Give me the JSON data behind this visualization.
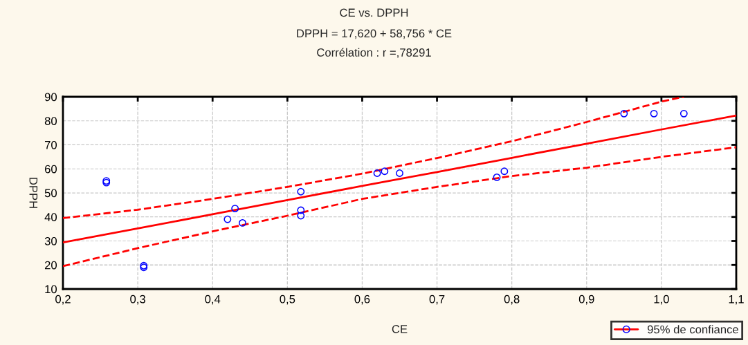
{
  "chart_data": {
    "type": "scatter",
    "title": "CE vs. DPPH",
    "subtitle": "DPPH = 17,620 + 58,756 * CE\nCorrélation : r =,78291",
    "xlabel": "CE",
    "ylabel": "DPPH",
    "series": [
      {
        "color": "#0000ff",
        "marker": "circle",
        "x": [
          0.258,
          0.258,
          0.308,
          0.308,
          0.42,
          0.43,
          0.44,
          0.518,
          0.518,
          0.518,
          0.62,
          0.63,
          0.65,
          0.78,
          0.79,
          0.95,
          0.99,
          1.03
        ],
        "values": [
          55,
          54.3,
          19.7,
          19,
          39,
          43.5,
          37.5,
          50.5,
          42.8,
          40.5,
          58.2,
          59,
          58.2,
          56.5,
          59,
          83,
          83,
          83
        ]
      },
      {
        "type": "line",
        "name": "95% de confiance",
        "color": "#ff0000",
        "line_style": "solid",
        "x": [
          0.2,
          0.3,
          0.4,
          0.5,
          0.6,
          0.7,
          0.8,
          0.9,
          1.0,
          1.1
        ],
        "values": [
          29.4,
          35.2,
          41.1,
          47,
          52.9,
          58.7,
          64.6,
          70.5,
          76.4,
          82.2
        ]
      },
      {
        "type": "line",
        "color": "#ff0000",
        "line_style": "dashed",
        "x": [
          0.2,
          0.3,
          0.4,
          0.5,
          0.6,
          0.7,
          0.8,
          0.9,
          1.0,
          1.1
        ],
        "values": [
          19.5,
          27,
          34,
          40.5,
          47.5,
          52.5,
          57,
          60.5,
          65,
          69
        ]
      },
      {
        "type": "line",
        "color": "#ff0000",
        "line_style": "dashed",
        "x": [
          0.2,
          0.3,
          0.4,
          0.5,
          0.6,
          0.7,
          0.8,
          0.9,
          1.0,
          1.03
        ],
        "values": [
          39.5,
          43,
          47.5,
          52.5,
          58,
          64.5,
          71.5,
          79.5,
          88,
          90
        ]
      }
    ],
    "xlim": [
      0.2,
      1.1
    ],
    "ylim": [
      10,
      90
    ],
    "xticks": [
      {
        "value": 0.2,
        "label": "0,2"
      },
      {
        "value": 0.3,
        "label": "0,3"
      },
      {
        "value": 0.4,
        "label": "0,4"
      },
      {
        "value": 0.5,
        "label": "0,5"
      },
      {
        "value": 0.6,
        "label": "0,6"
      },
      {
        "value": 0.7,
        "label": "0,7"
      },
      {
        "value": 0.8,
        "label": "0,8"
      },
      {
        "value": 0.9,
        "label": "0,9"
      },
      {
        "value": 1.0,
        "label": "1,0"
      },
      {
        "value": 1.1,
        "label": "1,1"
      }
    ],
    "yticks": [
      10,
      20,
      30,
      40,
      50,
      60,
      70,
      80,
      90
    ],
    "grid": true,
    "legend": "bottom right"
  }
}
